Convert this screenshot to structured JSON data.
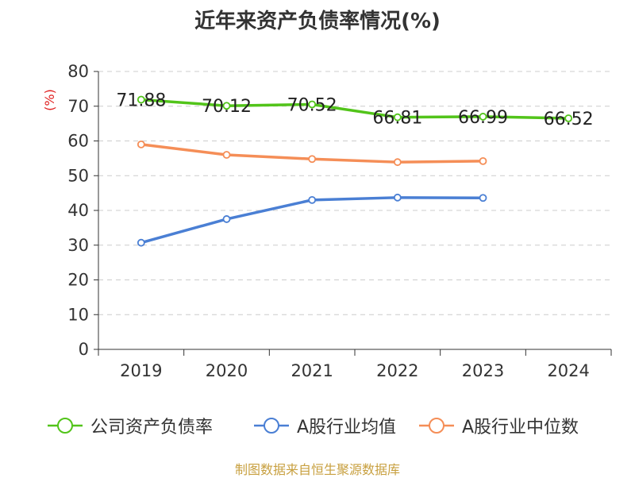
{
  "title": "近年来资产负债率情况(%)",
  "footer": "制图数据来自恒生聚源数据库",
  "colors": {
    "company": "#52c41a",
    "industry_avg": "#4a7fd4",
    "industry_median": "#f58e57",
    "axis_unit": "#e02020",
    "grid": "#cccccc",
    "axis": "#333333"
  },
  "chart_data": {
    "type": "line",
    "title": "近年来资产负债率情况(%)",
    "ylabel": "(%)",
    "xlabel": "",
    "categories": [
      "2019",
      "2020",
      "2021",
      "2022",
      "2023",
      "2024"
    ],
    "ylim": [
      0,
      80
    ],
    "yticks": [
      0,
      10,
      20,
      30,
      40,
      50,
      60,
      70,
      80
    ],
    "grid": "horizontal dashed",
    "legend": "bottom",
    "series": [
      {
        "name": "公司资产负债率",
        "values": [
          71.88,
          70.12,
          70.52,
          66.81,
          66.99,
          66.52
        ],
        "color": "#52c41a",
        "labels": [
          "71.88",
          "70.12",
          "70.52",
          "66.81",
          "66.99",
          "66.52"
        ]
      },
      {
        "name": "A股行业均值",
        "values": [
          30.7,
          37.5,
          43.0,
          43.7,
          43.6,
          null
        ],
        "color": "#4a7fd4"
      },
      {
        "name": "A股行业中位数",
        "values": [
          59.0,
          56.0,
          54.8,
          53.9,
          54.2,
          null
        ],
        "color": "#f58e57"
      }
    ]
  }
}
